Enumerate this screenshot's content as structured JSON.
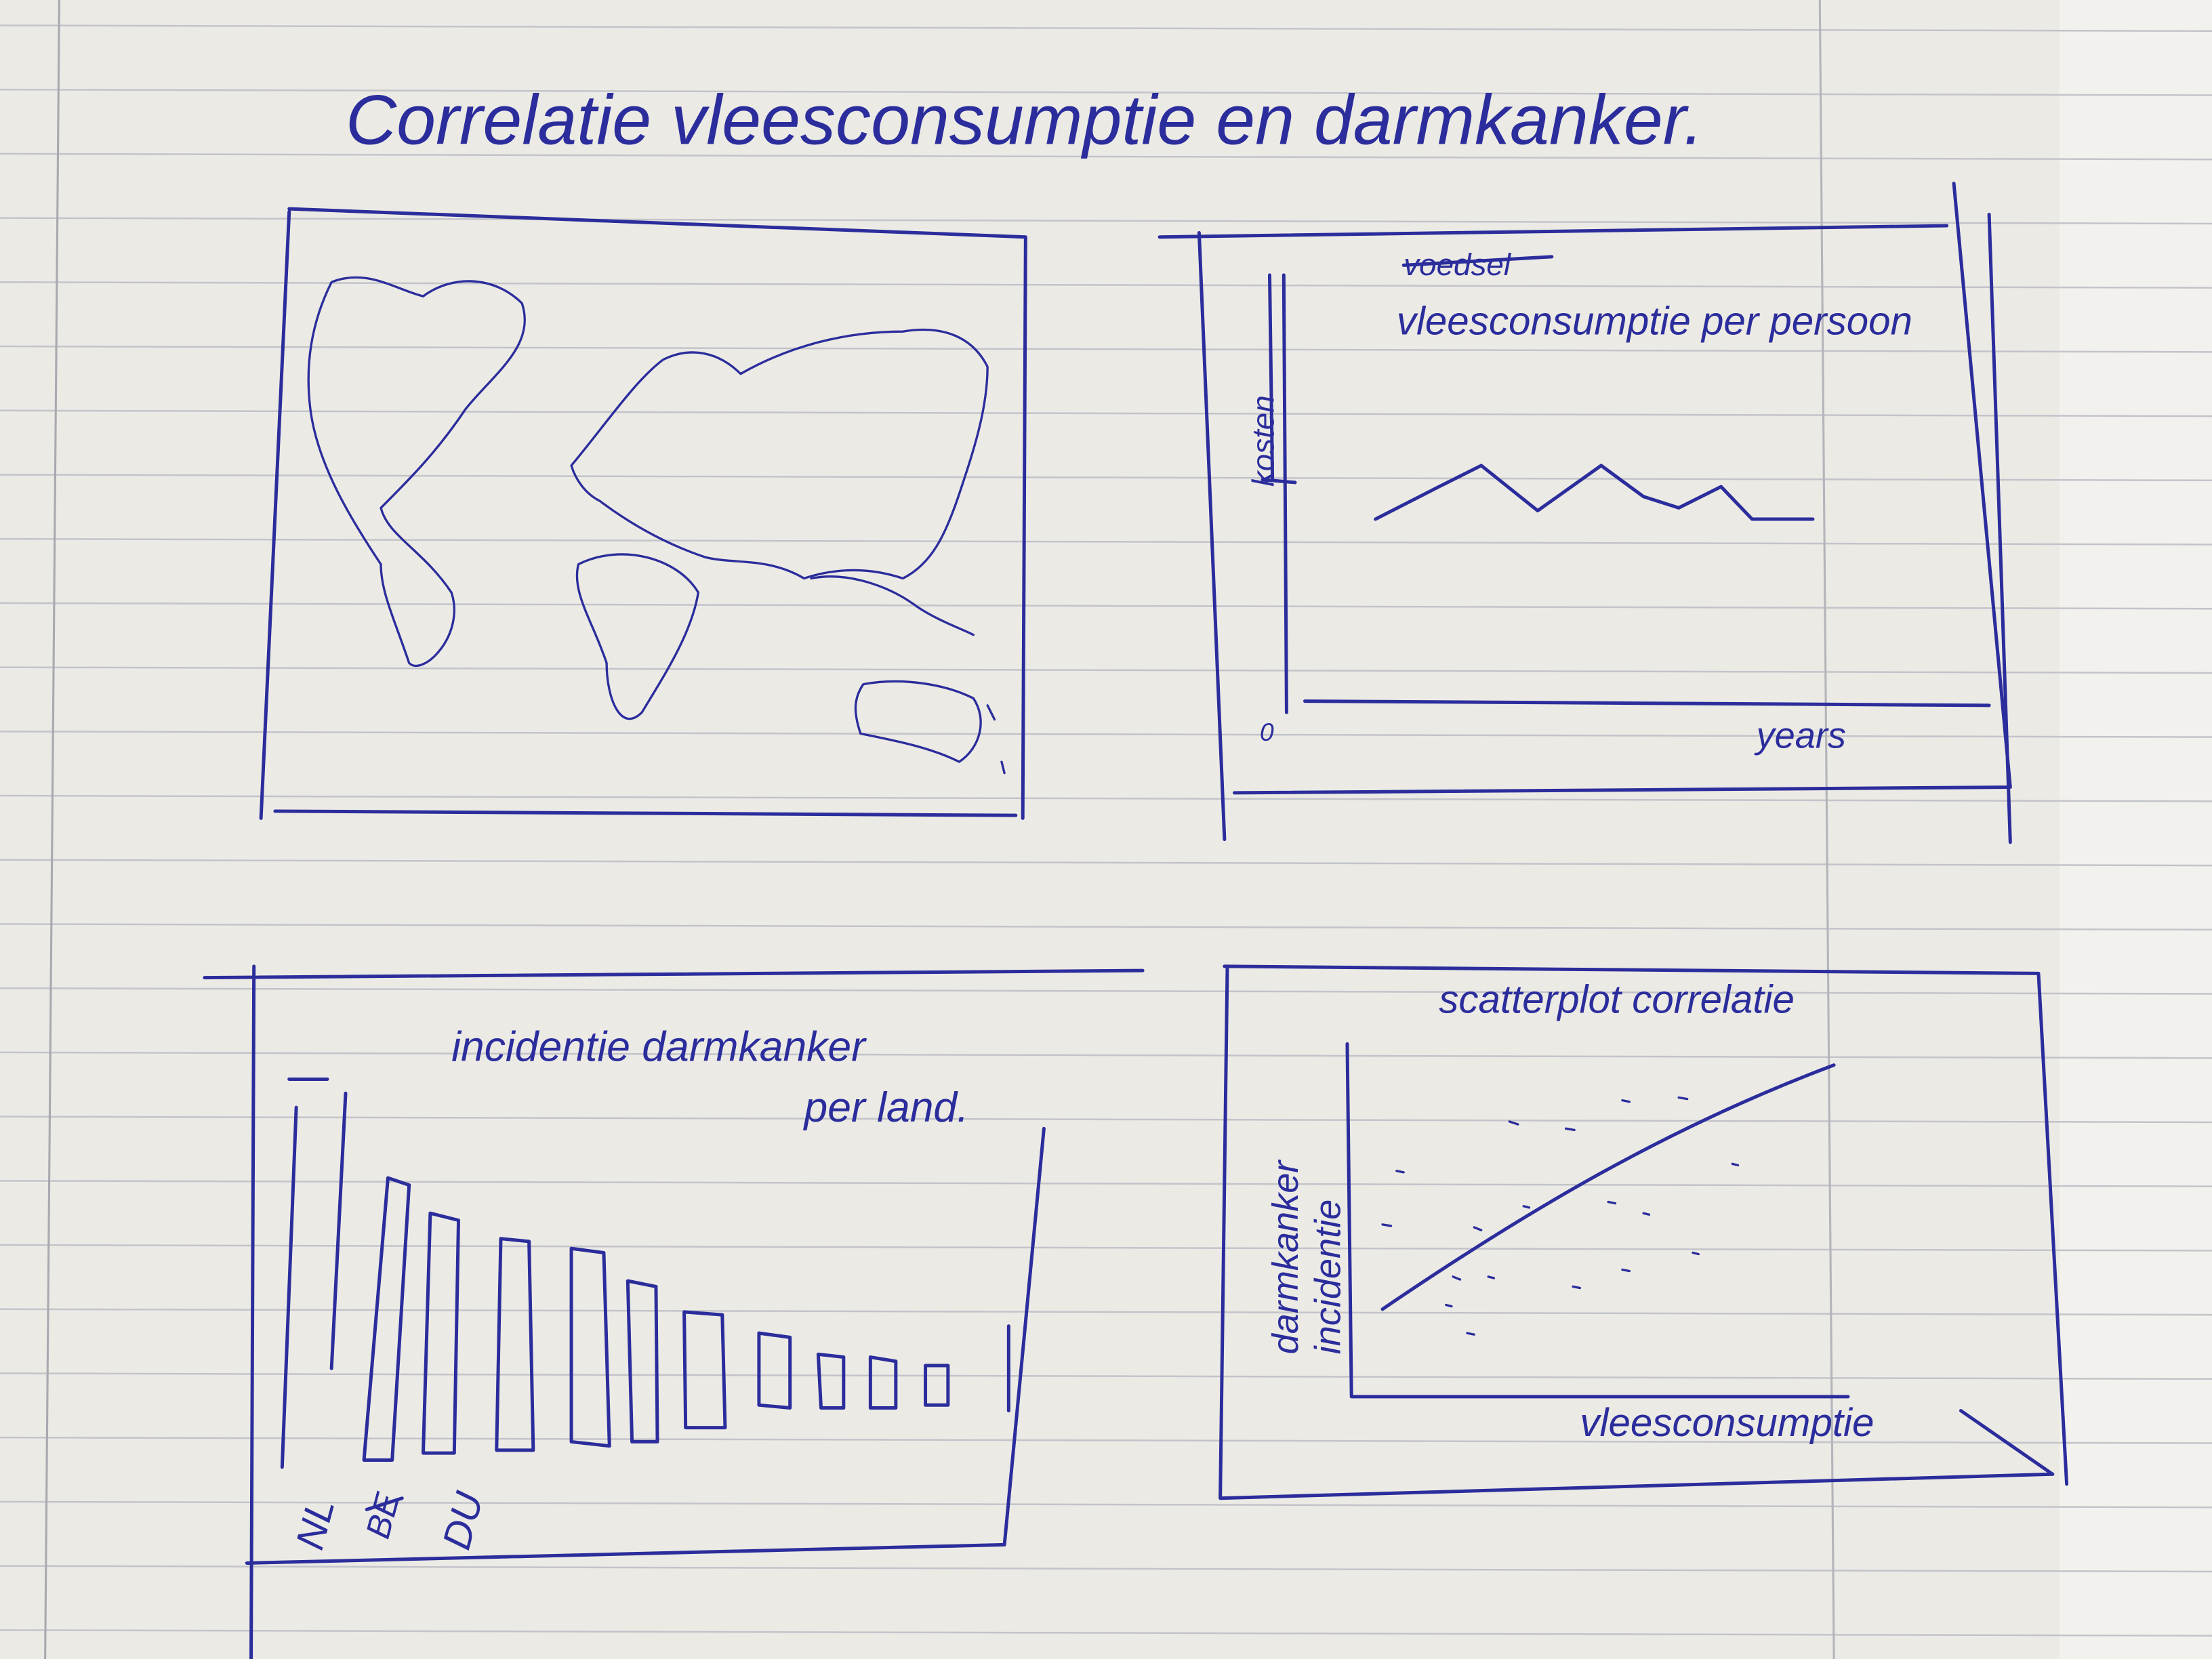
{
  "title": "Correlatie vleesconsumptie en darmkanker.",
  "line_panel": {
    "struck_title": "voedsel",
    "title": "vleesconsumptie per persoon",
    "struck_axis_label": "kosten",
    "y_origin": 0,
    "x_label": "years"
  },
  "bar_panel": {
    "title": [
      "incidentie darmkanker",
      "per land."
    ],
    "labels": [
      "NL",
      "BE",
      "DU"
    ]
  },
  "scatter_panel": {
    "title": "scatterplot correlatie",
    "y_label": [
      "darmkanker",
      "incidentie"
    ],
    "x_label": "vleesconsumptie"
  }
}
